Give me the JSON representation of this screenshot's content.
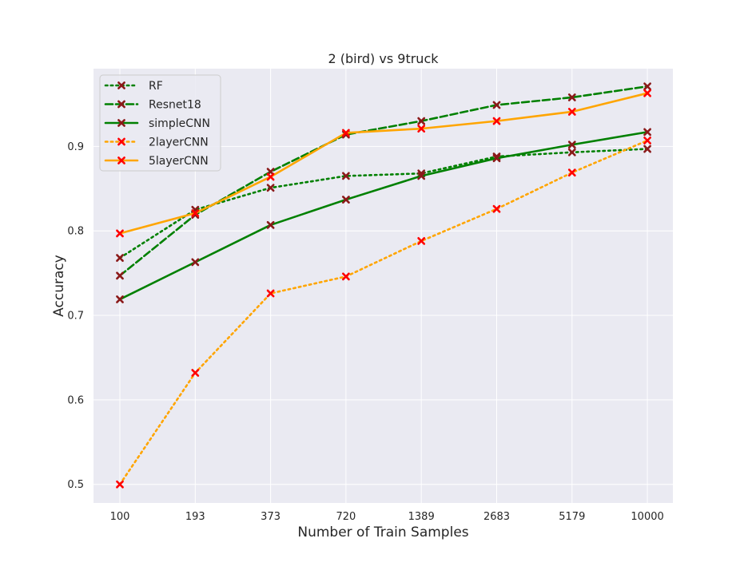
{
  "chart_data": {
    "type": "line",
    "title": "2 (bird)  vs 9truck",
    "xlabel": "Number of Train Samples",
    "ylabel": "Accuracy",
    "categories": [
      "100",
      "193",
      "373",
      "720",
      "1389",
      "2683",
      "5179",
      "10000"
    ],
    "ylim": [
      0.478,
      0.992
    ],
    "yticks": [
      0.5,
      0.6,
      0.7,
      0.8,
      0.9
    ],
    "grid": true,
    "legend_position": "top-left",
    "series": [
      {
        "name": "RF",
        "color": "#008000",
        "dash": "dotted",
        "marker_color": "#8b1a1a",
        "values": [
          0.768,
          0.825,
          0.851,
          0.865,
          0.868,
          0.888,
          0.893,
          0.897
        ]
      },
      {
        "name": "Resnet18",
        "color": "#008000",
        "dash": "dashed",
        "marker_color": "#8b1a1a",
        "values": [
          0.747,
          0.819,
          0.87,
          0.914,
          0.93,
          0.949,
          0.958,
          0.971
        ]
      },
      {
        "name": "simpleCNN",
        "color": "#008000",
        "dash": "solid",
        "marker_color": "#8b1a1a",
        "values": [
          0.719,
          0.763,
          0.807,
          0.837,
          0.865,
          0.886,
          0.902,
          0.917
        ]
      },
      {
        "name": "2layerCNN",
        "color": "#ffa500",
        "dash": "dotted",
        "marker_color": "#ff0000",
        "values": [
          0.5,
          0.632,
          0.726,
          0.746,
          0.788,
          0.826,
          0.869,
          0.907
        ]
      },
      {
        "name": "5layerCNN",
        "color": "#ffa500",
        "dash": "solid",
        "marker_color": "#ff0000",
        "values": [
          0.797,
          0.821,
          0.864,
          0.916,
          0.921,
          0.93,
          0.941,
          0.963
        ]
      }
    ]
  }
}
